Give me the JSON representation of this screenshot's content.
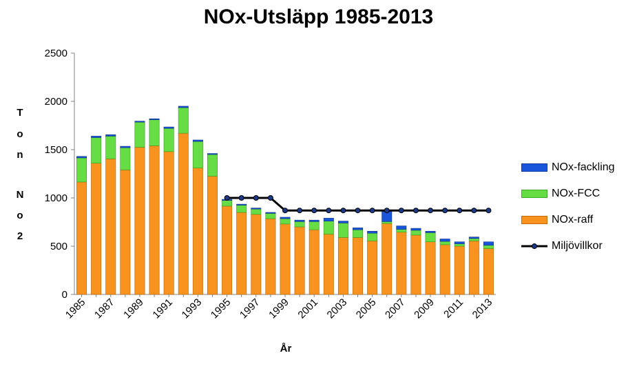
{
  "chart_data": {
    "type": "bar",
    "stacked": true,
    "title": "NOx-Utsläpp 1985-2013",
    "xlabel": "År",
    "ylabel_top": [
      "T",
      "o",
      "n"
    ],
    "ylabel_bottom": [
      "N",
      "o",
      "2"
    ],
    "ylim": [
      0,
      2500
    ],
    "yticks": [
      0,
      500,
      1000,
      1500,
      2000,
      2500
    ],
    "grid": false,
    "legend_position": "right",
    "categories": [
      "1985",
      "1986",
      "1987",
      "1988",
      "1989",
      "1990",
      "1991",
      "1992",
      "1993",
      "1994",
      "1995",
      "1996",
      "1997",
      "1998",
      "1999",
      "2000",
      "2001",
      "2002",
      "2003",
      "2004",
      "2005",
      "2006",
      "2007",
      "2008",
      "2009",
      "2010",
      "2011",
      "2012",
      "2013"
    ],
    "xtick_labels": [
      "1985",
      "1987",
      "1989",
      "1991",
      "1993",
      "1995",
      "1997",
      "1999",
      "2001",
      "2003",
      "2005",
      "2007",
      "2009",
      "2011",
      "2013"
    ],
    "series": [
      {
        "name": "NOx-raff",
        "color": "#f7931e",
        "values": [
          1165,
          1360,
          1405,
          1290,
          1525,
          1540,
          1480,
          1670,
          1310,
          1225,
          915,
          850,
          830,
          785,
          730,
          700,
          670,
          625,
          590,
          590,
          555,
          735,
          645,
          615,
          545,
          515,
          500,
          555,
          475
        ]
      },
      {
        "name": "NOx-FCC",
        "color": "#66dd44",
        "values": [
          250,
          265,
          235,
          230,
          260,
          270,
          240,
          265,
          275,
          225,
          60,
          75,
          55,
          55,
          55,
          55,
          85,
          135,
          150,
          80,
          80,
          20,
          30,
          50,
          95,
          35,
          25,
          25,
          35
        ]
      },
      {
        "name": "NOx-fackling",
        "color": "#1a56db",
        "values": [
          15,
          15,
          15,
          15,
          10,
          10,
          15,
          15,
          15,
          10,
          10,
          10,
          10,
          10,
          15,
          15,
          15,
          30,
          20,
          20,
          20,
          110,
          35,
          20,
          15,
          25,
          20,
          15,
          35
        ]
      }
    ],
    "line": {
      "name": "Miljövillkor",
      "color": "#000000",
      "values": [
        null,
        null,
        null,
        null,
        null,
        null,
        null,
        null,
        null,
        null,
        1000,
        1000,
        1000,
        1000,
        870,
        870,
        870,
        870,
        870,
        870,
        870,
        870,
        870,
        870,
        870,
        870,
        870,
        870,
        870
      ]
    },
    "legend": [
      "NOx-fackling",
      "NOx-FCC",
      "NOx-raff",
      "Miljövillkor"
    ]
  }
}
